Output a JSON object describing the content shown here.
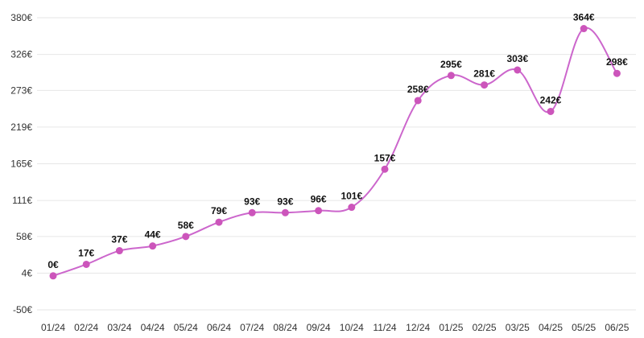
{
  "chart_data": {
    "type": "line",
    "categories": [
      "01/24",
      "02/24",
      "03/24",
      "04/24",
      "05/24",
      "06/24",
      "07/24",
      "08/24",
      "09/24",
      "10/24",
      "11/24",
      "12/24",
      "01/25",
      "02/25",
      "03/25",
      "04/25",
      "05/25",
      "06/25"
    ],
    "series": [
      {
        "values": [
          0,
          17,
          37,
          44,
          58,
          79,
          93,
          93,
          96,
          101,
          157,
          258,
          295,
          281,
          303,
          242,
          364,
          298
        ],
        "data_labels": [
          "0€",
          "17€",
          "37€",
          "44€",
          "58€",
          "79€",
          "93€",
          "93€",
          "96€",
          "101€",
          "157€",
          "258€",
          "295€",
          "281€",
          "303€",
          "242€",
          "364€",
          "298€"
        ]
      }
    ],
    "yticks": [
      -50,
      4,
      58,
      111,
      165,
      219,
      273,
      326,
      380
    ],
    "ytick_labels": [
      "-50€",
      "4€",
      "58€",
      "111€",
      "165€",
      "219€",
      "273€",
      "326€",
      "380€"
    ],
    "ylim": [
      -50,
      380
    ],
    "grid": true,
    "line_color": "#cc66cc",
    "point_color": "#cc55bb"
  }
}
